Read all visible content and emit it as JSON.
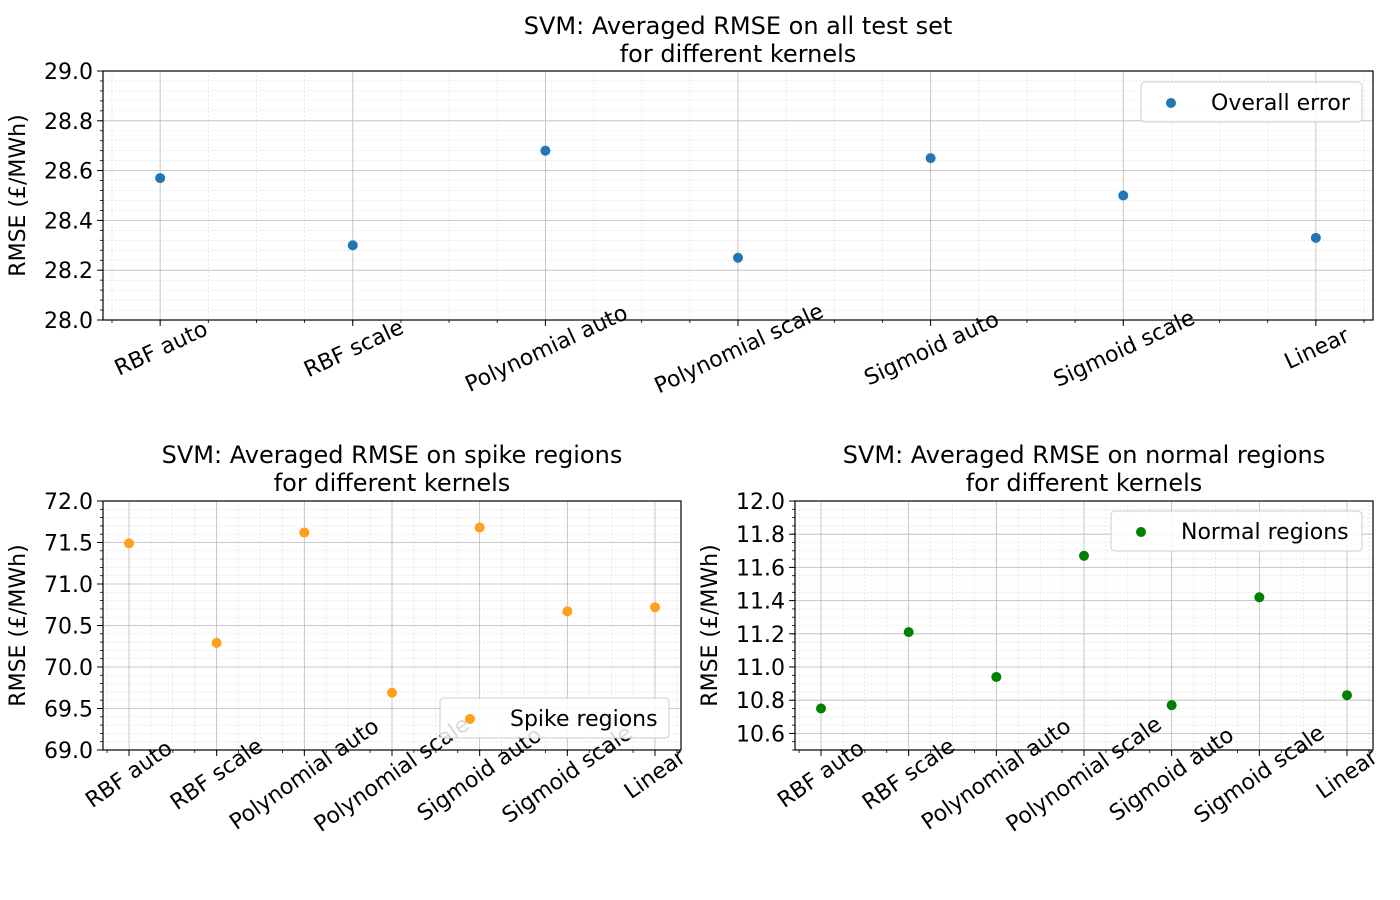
{
  "chart_data": [
    {
      "type": "scatter",
      "title_lines": [
        "SVM: Averaged RMSE on all test set",
        "for different kernels"
      ],
      "xlabel": "",
      "ylabel": "RMSE (£/MWh)",
      "categories": [
        "RBF auto",
        "RBF scale",
        "Polynomial auto",
        "Polynomial scale",
        "Sigmoid auto",
        "Sigmoid scale",
        "Linear"
      ],
      "ylim": [
        28.0,
        29.0
      ],
      "yticks": [
        "28.0",
        "28.2",
        "28.4",
        "28.6",
        "28.8",
        "29.0"
      ],
      "series": [
        {
          "name": "Overall error",
          "color": "#1f77b4",
          "values": [
            28.57,
            28.3,
            28.68,
            28.25,
            28.65,
            28.5,
            28.33
          ]
        }
      ],
      "grid": true,
      "legend_position": "top-right"
    },
    {
      "type": "scatter",
      "title_lines": [
        "SVM: Averaged RMSE on spike regions",
        "for different kernels"
      ],
      "xlabel": "",
      "ylabel": "RMSE (£/MWh)",
      "categories": [
        "RBF auto",
        "RBF scale",
        "Polynomial auto",
        "Polynomial scale",
        "Sigmoid auto",
        "Sigmoid scale",
        "Linear"
      ],
      "ylim": [
        69.0,
        72.0
      ],
      "yticks": [
        "69.0",
        "69.5",
        "70.0",
        "70.5",
        "71.0",
        "71.5",
        "72.0"
      ],
      "series": [
        {
          "name": "Spike regions",
          "color": "#ff9f1c",
          "values": [
            71.49,
            70.29,
            71.62,
            69.69,
            71.68,
            70.67,
            70.72
          ]
        }
      ],
      "grid": true,
      "legend_position": "bottom-right"
    },
    {
      "type": "scatter",
      "title_lines": [
        "SVM: Averaged RMSE on normal regions",
        "for different kernels"
      ],
      "xlabel": "",
      "ylabel": "RMSE (£/MWh)",
      "categories": [
        "RBF auto",
        "RBF scale",
        "Polynomial auto",
        "Polynomial scale",
        "Sigmoid auto",
        "Sigmoid scale",
        "Linear"
      ],
      "ylim": [
        10.5,
        12.0
      ],
      "yticks": [
        "10.6",
        "10.8",
        "11.0",
        "11.2",
        "11.4",
        "11.6",
        "11.8",
        "12.0"
      ],
      "series": [
        {
          "name": "Normal regions",
          "color": "#008000",
          "values": [
            10.75,
            11.21,
            10.94,
            11.67,
            10.77,
            11.42,
            10.83
          ]
        }
      ],
      "grid": true,
      "legend_position": "top-right"
    }
  ]
}
